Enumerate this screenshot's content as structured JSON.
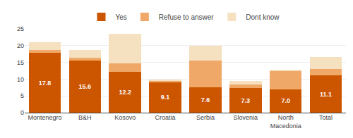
{
  "chart_data": {
    "type": "bar",
    "stacked": true,
    "categories": [
      "Montenegro",
      "B&H",
      "Kosovo",
      "Croatia",
      "Serbia",
      "Slovenia",
      "North\nMacedonia",
      "Total"
    ],
    "series": [
      {
        "name": "Yes",
        "color": "#cc5500",
        "values": [
          17.8,
          15.6,
          12.2,
          9.1,
          7.6,
          7.3,
          7.0,
          11.1
        ],
        "value_labels": [
          "17.8",
          "15.6",
          "12.2",
          "9.1",
          "7.6",
          "7.3",
          "7.0",
          "11.1"
        ],
        "data_labels": true
      },
      {
        "name": "Refuse to answer",
        "color": "#f0a868",
        "values": [
          0.8,
          0.8,
          2.5,
          0.5,
          8.0,
          1.2,
          5.5,
          2.0
        ]
      },
      {
        "name": "Dont know",
        "color": "#f5e0c0",
        "values": [
          2.4,
          2.4,
          8.8,
          0.3,
          4.4,
          1.0,
          0.3,
          3.4
        ]
      }
    ],
    "ylim": [
      0,
      25
    ],
    "yticks": [
      0,
      5,
      10,
      15,
      20,
      25
    ],
    "grid": true,
    "legend": "top"
  }
}
